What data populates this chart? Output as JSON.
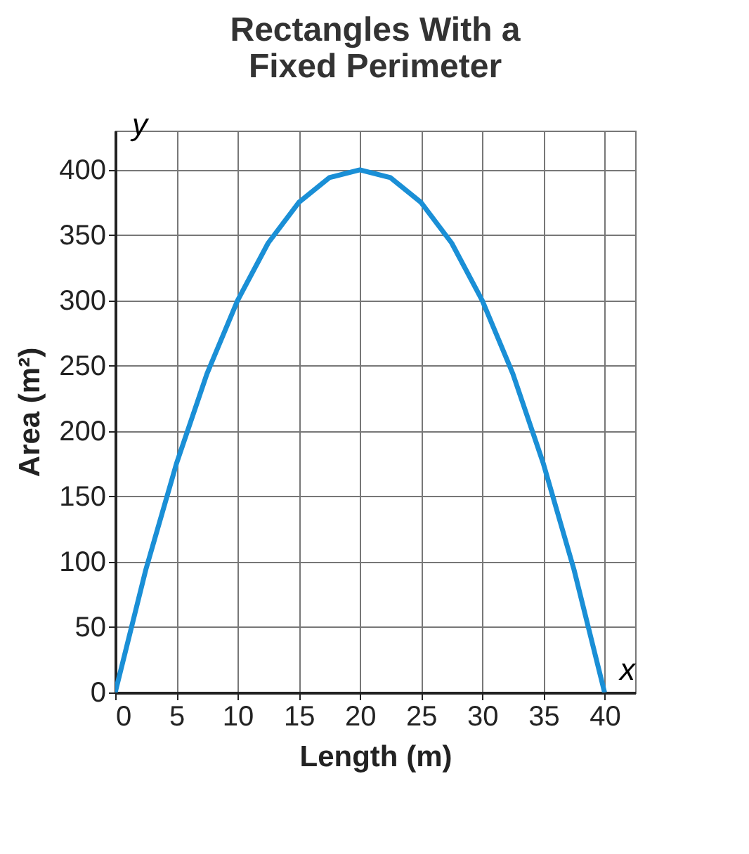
{
  "chart_data": {
    "type": "line",
    "title": "Rectangles With a Fixed Perimeter",
    "xlabel": "Length (m)",
    "ylabel": "Area (m²)",
    "annotations": [
      "y",
      "x"
    ],
    "x": [
      0,
      2.5,
      5,
      7.5,
      10,
      12.5,
      15,
      17.5,
      20,
      22.5,
      25,
      27.5,
      30,
      32.5,
      35,
      37.5,
      40
    ],
    "series": [
      {
        "color": "#1a8fd6",
        "values": [
          0,
          94,
          175,
          244,
          300,
          344,
          375,
          394,
          400,
          394,
          375,
          344,
          300,
          244,
          175,
          94,
          0
        ]
      }
    ],
    "xlim": [
      0,
      42.5
    ],
    "ylim": [
      0,
      430
    ],
    "xticks": [
      0,
      5,
      10,
      15,
      20,
      25,
      30,
      35,
      40
    ],
    "yticks": [
      0,
      50,
      100,
      150,
      200,
      250,
      300,
      350,
      400
    ],
    "grid": true,
    "marker": "none",
    "line_style": "solid"
  }
}
